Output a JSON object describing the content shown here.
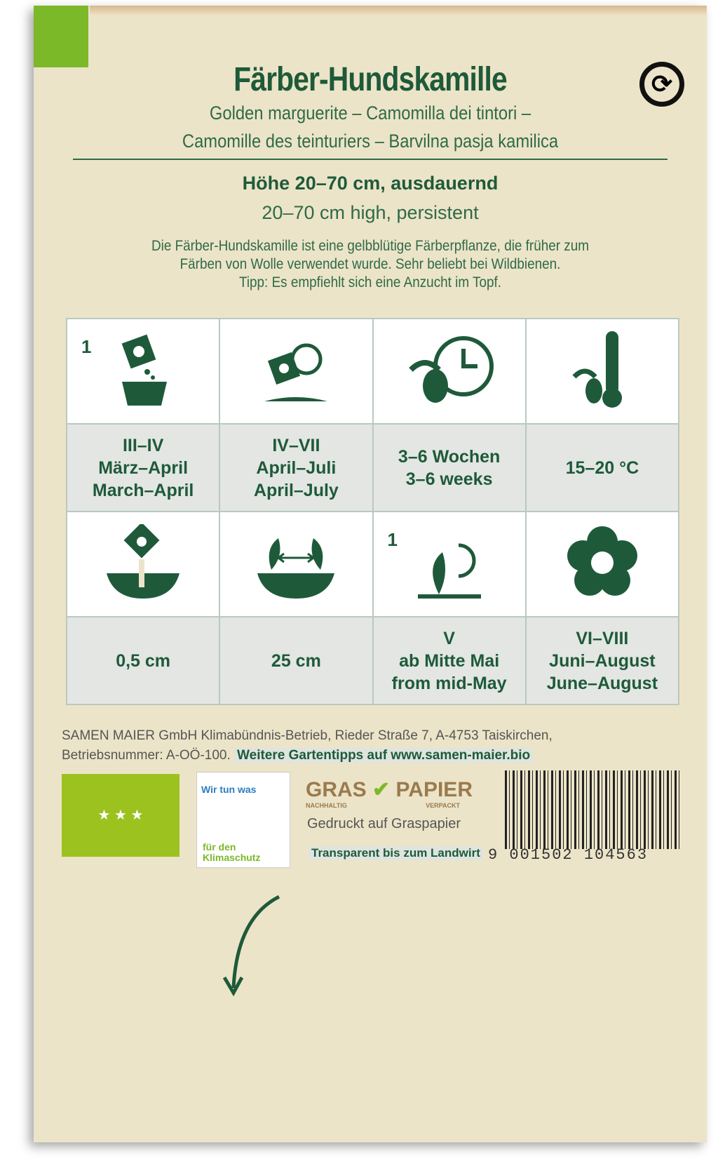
{
  "title": "Färber-Hundskamille",
  "subtitle_line1": "Golden marguerite – Camomilla dei tintori –",
  "subtitle_line2": "Camomille des teinturiers – Barvilna pasja kamilica",
  "height_de": "Höhe 20–70 cm, ausdauernd",
  "height_en": "20–70 cm high, persistent",
  "description": [
    "Die Färber-Hundskamille ist eine gelbblütige Färberpflanze, die früher zum",
    "Färben von Wolle verwendet wurde. Sehr beliebt bei Wildbienen.",
    "Tipp: Es empfiehlt sich eine Anzucht im Topf."
  ],
  "grid": {
    "row1": [
      {
        "icon": "sow-in-pot-icon",
        "num": "1",
        "lines": [
          "III–IV",
          "März–April",
          "March–April"
        ]
      },
      {
        "icon": "sow-outdoor-icon",
        "lines": [
          "IV–VII",
          "April–Juli",
          "April–July"
        ]
      },
      {
        "icon": "germination-time-icon",
        "lines": [
          "3–6 Wochen",
          "3–6 weeks"
        ]
      },
      {
        "icon": "germination-temperature-icon",
        "lines": [
          "15–20 °C"
        ]
      }
    ],
    "row2": [
      {
        "icon": "sowing-depth-icon",
        "lines": [
          "0,5 cm"
        ]
      },
      {
        "icon": "plant-spacing-icon",
        "lines": [
          "25 cm"
        ]
      },
      {
        "icon": "planting-out-icon",
        "num": "1",
        "lines": [
          "V",
          "ab Mitte Mai",
          "from mid-May"
        ]
      },
      {
        "icon": "flower-icon",
        "lines": [
          "VI–VIII",
          "Juni–August",
          "June–August"
        ]
      }
    ]
  },
  "footer": {
    "line1": "SAMEN MAIER GmbH Klimabündnis-Betrieb, Rieder Straße 7, A-4753 Taiskirchen,",
    "line2": "Betriebsnummer: A-OÖ-100.",
    "link": "Weitere Gartentipps auf www.samen-maier.bio"
  },
  "logos": {
    "klima_top": "Wir tun was",
    "klima_bottom": "für den Klimaschutz",
    "gras": "GRAS",
    "papier": "PAPIER",
    "gras_sub": "NACHHALTIG",
    "papier_sub": "VERPACKT",
    "printed": "Gedruckt auf Graspapier",
    "transparent": "Transparent bis zum Landwirt",
    "barcode": "9 001502 104563"
  },
  "colors": {
    "green": "#1e5a3a",
    "paper": "#ece4c8",
    "bio_green": "#9cc21f"
  }
}
